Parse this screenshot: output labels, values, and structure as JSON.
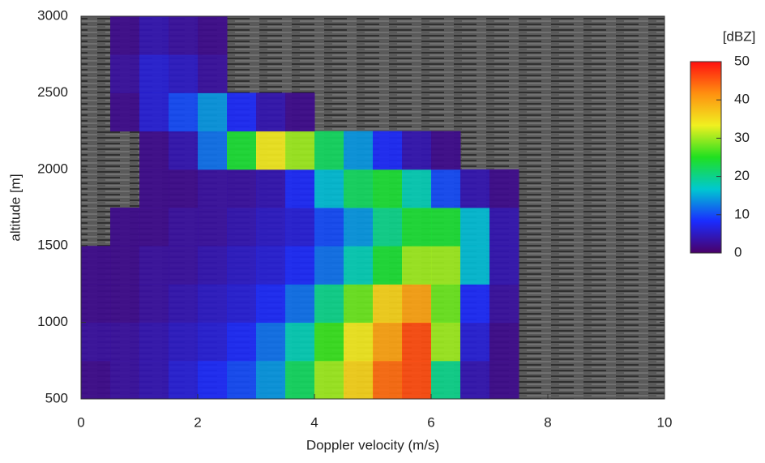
{
  "chart_data": {
    "type": "heatmap",
    "xlabel": "Doppler velocity (m/s)",
    "ylabel": "altitude [m]",
    "xlim": [
      0,
      10
    ],
    "xticks": [
      0,
      2,
      4,
      6,
      8,
      10
    ],
    "ylim": [
      500,
      3000
    ],
    "yticks": [
      500,
      1000,
      1500,
      2000,
      2500,
      3000
    ],
    "xbins": [
      0,
      0.5,
      1,
      1.5,
      2,
      2.5,
      3,
      3.5,
      4,
      4.5,
      5,
      5.5,
      6,
      6.5,
      7,
      7.5,
      8,
      8.5,
      9,
      9.5,
      10
    ],
    "ybins": [
      500,
      750,
      1000,
      1250,
      1500,
      1750,
      2000,
      2250,
      2500,
      2750,
      3000
    ],
    "values": [
      [
        2,
        3,
        4,
        6,
        8,
        10,
        14,
        22,
        30,
        36,
        44,
        46,
        20,
        4,
        2,
        null,
        null,
        null,
        null,
        null
      ],
      [
        3,
        3,
        4,
        5,
        6,
        8,
        12,
        18,
        26,
        34,
        40,
        46,
        30,
        6,
        2,
        null,
        null,
        null,
        null,
        null
      ],
      [
        2,
        2,
        3,
        4,
        5,
        6,
        8,
        12,
        20,
        28,
        36,
        40,
        28,
        8,
        3,
        null,
        null,
        null,
        null,
        null
      ],
      [
        2,
        2,
        3,
        3,
        4,
        5,
        6,
        8,
        12,
        18,
        24,
        30,
        30,
        16,
        4,
        null,
        null,
        null,
        null,
        null
      ],
      [
        null,
        2,
        2,
        3,
        3,
        4,
        5,
        6,
        10,
        14,
        20,
        24,
        24,
        16,
        4,
        null,
        null,
        null,
        null,
        null
      ],
      [
        null,
        null,
        2,
        2,
        3,
        3,
        4,
        8,
        16,
        22,
        24,
        18,
        10,
        4,
        2,
        null,
        null,
        null,
        null,
        null
      ],
      [
        null,
        null,
        2,
        4,
        12,
        24,
        34,
        30,
        22,
        14,
        8,
        4,
        2,
        null,
        null,
        null,
        null,
        null,
        null,
        null
      ],
      [
        null,
        2,
        6,
        10,
        14,
        8,
        4,
        2,
        null,
        null,
        null,
        null,
        null,
        null,
        null,
        null,
        null,
        null,
        null,
        null
      ],
      [
        null,
        3,
        6,
        5,
        3,
        null,
        null,
        null,
        null,
        null,
        null,
        null,
        null,
        null,
        null,
        null,
        null,
        null,
        null,
        null
      ],
      [
        null,
        2,
        4,
        3,
        2,
        null,
        null,
        null,
        null,
        null,
        null,
        null,
        null,
        null,
        null,
        null,
        null,
        null,
        null,
        null
      ]
    ],
    "colorbar_label": "[dBZ]",
    "clim": [
      0,
      50
    ],
    "cticks": [
      0,
      10,
      20,
      30,
      40,
      50
    ],
    "colorscale": [
      "#4a0068",
      "#1a2cff",
      "#00c8d0",
      "#20e020",
      "#f0f020",
      "#ff9010",
      "#ff1010"
    ]
  }
}
